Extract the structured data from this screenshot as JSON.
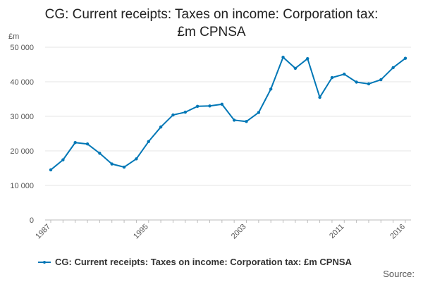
{
  "chart_data": {
    "type": "line",
    "title": "CG: Current receipts: Taxes on income: Corporation tax: £m CPNSA",
    "ylabel": "£m",
    "xlabel": "",
    "ylim": [
      0,
      50000
    ],
    "y_ticks": [
      0,
      10000,
      20000,
      30000,
      40000,
      50000
    ],
    "y_tick_labels": [
      "0",
      "10 000",
      "20 000",
      "30 000",
      "40 000",
      "50 000"
    ],
    "x_tick_labels": [
      "1987",
      "1995",
      "2003",
      "2011",
      "2016"
    ],
    "grid": true,
    "legend_position": "bottom",
    "series": [
      {
        "name": "CG: Current receipts: Taxes on income: Corporation tax: £m CPNSA",
        "color": "#0077b6",
        "x": [
          1987,
          1988,
          1989,
          1990,
          1991,
          1992,
          1993,
          1994,
          1995,
          1996,
          1997,
          1998,
          1999,
          2000,
          2001,
          2002,
          2003,
          2004,
          2005,
          2006,
          2007,
          2008,
          2009,
          2010,
          2011,
          2012,
          2013,
          2014,
          2015,
          2016
        ],
        "values": [
          14500,
          17400,
          22400,
          22000,
          19300,
          16200,
          15300,
          17700,
          22700,
          26900,
          30400,
          31200,
          32900,
          33000,
          33500,
          28900,
          28500,
          31100,
          37900,
          47100,
          43900,
          46700,
          35500,
          41200,
          42200,
          39900,
          39400,
          40600,
          44100,
          46800
        ]
      }
    ]
  },
  "title_lines": [
    "CG: Current receipts: Taxes on income: Corporation tax:",
    "£m CPNSA"
  ],
  "legend_label": "CG: Current receipts: Taxes on income: Corporation tax: £m CPNSA",
  "source_label": "Source:"
}
